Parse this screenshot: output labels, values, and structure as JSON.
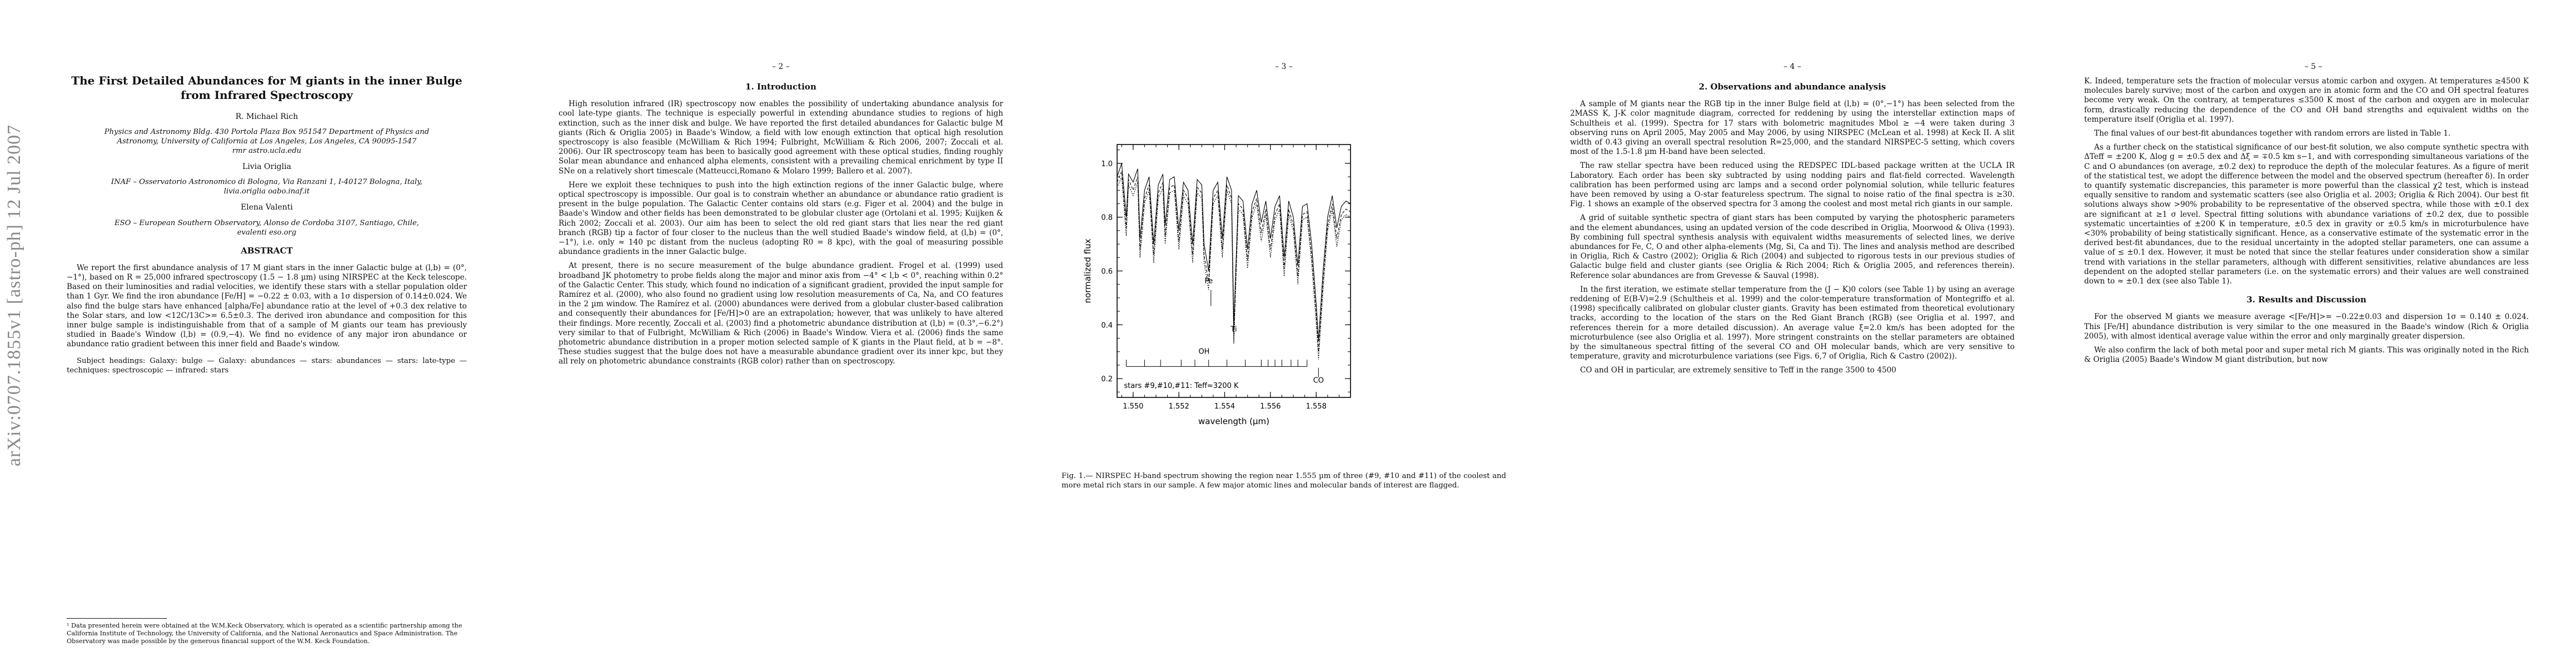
{
  "arxiv_stamp": "arXiv:0707.1855v1  [astro-ph]  12 Jul 2007",
  "page1": {
    "title_line1": "The First Detailed Abundances for M giants in the inner Bulge",
    "title_line2": "from Infrared Spectroscopy",
    "author1": "R. Michael Rich",
    "affil1_line1": "Physics and Astronomy Bldg. 430 Portola Plaza Box 951547 Department of Physics and",
    "affil1_line2": "Astronomy, University of California at Los Angeles, Los Angeles, CA 90095-1547",
    "affil1_line3": "rmr   astro.ucla.edu",
    "author2": "Livia Origlia",
    "affil2_line1": "INAF – Osservatorio Astronomico di Bologna, Via Ranzani 1, I-40127 Bologna, Italy,",
    "affil2_line2": "livia.origlia   oabo.inaf.it",
    "author3": "Elena Valenti",
    "affil3_line1": "ESO – European Southern Observatory, Alonso de Cordoba 3107, Santiago, Chile,",
    "affil3_line2": "evalenti   eso.org",
    "abstract_heading": "ABSTRACT",
    "abstract": "We report the first abundance analysis of 17 M giant stars in the inner Galactic bulge at (l,b) = (0°,−1°), based on R = 25,000 infrared spectroscopy (1.5 − 1.8 µm) using NIRSPEC at the Keck telescope. Based on their luminosities and radial velocities, we identify these stars with a stellar population older than 1 Gyr. We find the iron abundance [Fe/H] = −0.22 ± 0.03, with a 1σ dispersion of 0.14±0.024. We also find the bulge stars have enhanced [alpha/Fe] abundance ratio at the level of +0.3 dex relative to the Solar stars, and low <12C/13C>= 6.5±0.3. The derived iron abundance and composition for this inner bulge sample is indistinguishable from that of a sample of M giants our team has previously studied in Baade's Window (l,b) = (0.9,−4). We find no evidence of any major iron abundance or abundance ratio gradient between this inner field and Baade's window.",
    "subject": "Subject headings: Galaxy: bulge — Galaxy: abundances — stars: abundances — stars: late-type — techniques: spectroscopic — infrared: stars",
    "footnote": "¹ Data presented herein were obtained at the W.M.Keck Observatory, which is operated as a scientific partnership among the California Institute of Technology, the University of California, and the National Aeronautics and Space Administration. The Observatory was made possible by the generous financial support of the W.M. Keck Foundation."
  },
  "page2": {
    "number": "– 2 –",
    "heading": "1.   Introduction",
    "p1": "High resolution infrared (IR) spectroscopy now enables the possibility of undertaking abundance analysis for cool late-type giants. The technique is especially powerful in extending abundance studies to regions of high extinction, such as the inner disk and bulge. We have reported the first detailed abundances for Galactic bulge M giants (Rich & Origlia 2005) in Baade's Window, a field with low enough extinction that optical high resolution spectroscopy is also feasible (McWilliam & Rich 1994; Fulbright, McWilliam & Rich 2006, 2007; Zoccali et al. 2006). Our IR spectroscopy team has been to basically good agreement with these optical studies, finding roughly Solar mean abundance and enhanced alpha elements, consistent with a prevailing chemical enrichment by type II SNe on a relatively short timescale (Matteucci,Romano & Molaro 1999; Ballero et al. 2007).",
    "p2": "Here we exploit these techniques to push into the high extinction regions of the inner Galactic bulge, where optical spectroscopy is impossible. Our goal is to constrain whether an abundance or abundance ratio gradient is present in the bulge population. The Galactic Center contains old stars (e.g. Figer et al. 2004) and the bulge in Baade's Window and other fields has been demonstrated to be globular cluster age (Ortolani et al. 1995; Kuijken & Rich 2002; Zoccali et al. 2003). Our aim has been to select the old red giant stars that lies near the red giant branch (RGB) tip a factor of four closer to the nucleus than the well studied Baade's window field, at (l,b) = (0°,−1°), i.e. only ≈ 140 pc distant from the nucleus (adopting R0 = 8 kpc), with the goal of measuring possible abundance gradients in the inner Galactic bulge.",
    "p3": "At present, there is no secure measurement of the bulge abundance gradient. Frogel et al. (1999) used broadband JK photometry to probe fields along the major and minor axis from −4° < l,b < 0°, reaching within 0.2° of the Galactic Center. This study, which found no indication of a significant gradient, provided the input sample for Ramírez et al. (2000), who also found no gradient using low resolution measurements of Ca, Na, and CO features in the 2 µm window. The Ramírez et al. (2000) abundances were derived from a globular cluster-based calibration and consequently their abundances for [Fe/H]>0 are an extrapolation; however, that was unlikely to have altered their findings. More recently, Zoccali et al. (2003) find a photometric abundance distribution at (l,b) = (0.3°,−6.2°) very similar to that of Fulbright, McWilliam & Rich (2006) in Baade's Window. Viera et al. (2006) finds the same photometric abundance distribution in a proper motion selected sample of K giants in the Plaut field, at b = −8°. These studies suggest that the bulge does not have a measurable abundance gradient over its inner kpc, but they all rely on photometric abundance constraints (RGB color) rather than on spectroscopy."
  },
  "page3": {
    "number": "– 3 –",
    "caption": "Fig. 1.— NIRSPEC H-band spectrum showing the region near 1.555 µm of three (#9, #10 and #11) of the coolest and more metal rich stars in our sample. A few major atomic lines and molecular bands of interest are flagged."
  },
  "chart_data": {
    "type": "line",
    "xlabel": "wavelength (µm)",
    "ylabel": "normalized flux",
    "xlim": [
      1.5493,
      1.5595
    ],
    "ylim": [
      0.13,
      1.07
    ],
    "xticks": [
      1.55,
      1.552,
      1.554,
      1.556,
      1.558
    ],
    "xtick_labels": [
      "1.550",
      "1.552",
      "1.554",
      "1.556",
      "1.558"
    ],
    "yticks": [
      0.2,
      0.4,
      0.6,
      0.8,
      1.0
    ],
    "ytick_labels": [
      "0.2",
      "0.4",
      "0.6",
      "0.8",
      "1.0"
    ],
    "annotation": "stars #9,#10,#11: Teff≈3200 K",
    "line_labels": [
      {
        "text": "Fe",
        "x": 1.5533,
        "y": 0.555
      },
      {
        "text": "Ti",
        "x": 1.5544,
        "y": 0.375
      },
      {
        "text": "OH",
        "x": 1.5531,
        "y": 0.292
      },
      {
        "text": "CO",
        "x": 1.5581,
        "y": 0.185
      }
    ],
    "oh_marks": [
      1.5497,
      1.5505,
      1.5512,
      1.5521,
      1.5527,
      1.5533,
      1.5541,
      1.5549,
      1.5556,
      1.5559,
      1.5562,
      1.5565,
      1.5569,
      1.5572,
      1.5576
    ],
    "fe_mark": 1.5534,
    "ti_mark": 1.5544,
    "co_mark": 1.5581,
    "series": [
      {
        "x": [
          1.5493,
          1.5495,
          1.5497,
          1.5498,
          1.55,
          1.5502,
          1.5503,
          1.5505,
          1.5507,
          1.5509,
          1.5511,
          1.5513,
          1.5514,
          1.5516,
          1.5518,
          1.552,
          1.5522,
          1.5524,
          1.5526,
          1.5528,
          1.553,
          1.5531,
          1.5533,
          1.5535,
          1.5537,
          1.5539,
          1.5541,
          1.5543,
          1.5544,
          1.5546,
          1.5548,
          1.555,
          1.5552,
          1.5554,
          1.5556,
          1.5558,
          1.556,
          1.5562,
          1.5564,
          1.5566,
          1.5568,
          1.557,
          1.5572,
          1.5574,
          1.5576,
          1.5578,
          1.558,
          1.5581,
          1.5583,
          1.5585,
          1.5587,
          1.5589,
          1.5591,
          1.5593,
          1.5595
        ],
        "y": [
          0.95,
          1.0,
          0.8,
          0.96,
          0.93,
          0.98,
          0.72,
          0.9,
          0.95,
          0.7,
          0.92,
          0.96,
          0.77,
          0.94,
          0.95,
          0.75,
          0.93,
          0.9,
          0.7,
          0.94,
          0.92,
          0.7,
          0.6,
          0.9,
          0.93,
          0.72,
          0.95,
          0.9,
          0.4,
          0.88,
          0.86,
          0.68,
          0.85,
          0.9,
          0.78,
          0.86,
          0.72,
          0.84,
          0.88,
          0.65,
          0.86,
          0.8,
          0.62,
          0.84,
          0.85,
          0.7,
          0.48,
          0.34,
          0.6,
          0.8,
          0.88,
          0.76,
          0.84,
          0.86,
          0.85
        ]
      },
      {
        "x": [
          1.5493,
          1.5495,
          1.5497,
          1.5498,
          1.55,
          1.5502,
          1.5503,
          1.5505,
          1.5507,
          1.5509,
          1.5511,
          1.5513,
          1.5514,
          1.5516,
          1.5518,
          1.552,
          1.5522,
          1.5524,
          1.5526,
          1.5528,
          1.553,
          1.5531,
          1.5533,
          1.5535,
          1.5537,
          1.5539,
          1.5541,
          1.5543,
          1.5544,
          1.5546,
          1.5548,
          1.555,
          1.5552,
          1.5554,
          1.5556,
          1.5558,
          1.556,
          1.5562,
          1.5564,
          1.5566,
          1.5568,
          1.557,
          1.5572,
          1.5574,
          1.5576,
          1.5578,
          1.558,
          1.5581,
          1.5583,
          1.5585,
          1.5587,
          1.5589,
          1.5591,
          1.5593,
          1.5595
        ],
        "y": [
          0.93,
          0.97,
          0.76,
          0.94,
          0.9,
          0.95,
          0.68,
          0.87,
          0.92,
          0.66,
          0.89,
          0.93,
          0.73,
          0.91,
          0.92,
          0.71,
          0.9,
          0.87,
          0.66,
          0.91,
          0.89,
          0.66,
          0.56,
          0.87,
          0.9,
          0.68,
          0.92,
          0.87,
          0.36,
          0.85,
          0.83,
          0.64,
          0.82,
          0.87,
          0.74,
          0.83,
          0.68,
          0.81,
          0.85,
          0.61,
          0.83,
          0.77,
          0.58,
          0.81,
          0.82,
          0.66,
          0.44,
          0.3,
          0.56,
          0.77,
          0.85,
          0.72,
          0.81,
          0.83,
          0.82
        ]
      },
      {
        "x": [
          1.5493,
          1.5495,
          1.5497,
          1.5498,
          1.55,
          1.5502,
          1.5503,
          1.5505,
          1.5507,
          1.5509,
          1.5511,
          1.5513,
          1.5514,
          1.5516,
          1.5518,
          1.552,
          1.5522,
          1.5524,
          1.5526,
          1.5528,
          1.553,
          1.5531,
          1.5533,
          1.5535,
          1.5537,
          1.5539,
          1.5541,
          1.5543,
          1.5544,
          1.5546,
          1.5548,
          1.555,
          1.5552,
          1.5554,
          1.5556,
          1.5558,
          1.556,
          1.5562,
          1.5564,
          1.5566,
          1.5568,
          1.557,
          1.5572,
          1.5574,
          1.5576,
          1.5578,
          1.558,
          1.5581,
          1.5583,
          1.5585,
          1.5587,
          1.5589,
          1.5591,
          1.5593,
          1.5595
        ],
        "y": [
          0.91,
          0.95,
          0.73,
          0.92,
          0.88,
          0.93,
          0.65,
          0.85,
          0.9,
          0.63,
          0.87,
          0.91,
          0.7,
          0.89,
          0.9,
          0.68,
          0.88,
          0.85,
          0.63,
          0.89,
          0.87,
          0.63,
          0.53,
          0.85,
          0.88,
          0.65,
          0.9,
          0.85,
          0.33,
          0.83,
          0.81,
          0.61,
          0.8,
          0.85,
          0.71,
          0.81,
          0.65,
          0.79,
          0.83,
          0.58,
          0.81,
          0.75,
          0.55,
          0.79,
          0.8,
          0.63,
          0.41,
          0.27,
          0.53,
          0.75,
          0.83,
          0.69,
          0.79,
          0.81,
          0.8
        ]
      }
    ]
  },
  "page4": {
    "number": "– 4 –",
    "heading": "2.   Observations and abundance analysis",
    "p1": "A sample of M giants near the RGB tip in the inner Bulge field at (l,b) = (0°,−1°) has been selected from the 2MASS K, J-K color magnitude diagram, corrected for reddening by using the interstellar extinction maps of Schultheis et al. (1999). Spectra for 17 stars with bolometric magnitudes Mbol ≥ −4 were taken during 3 observing runs on April 2005, May 2005 and May 2006, by using NIRSPEC (McLean et al. 1998) at Keck II. A slit width of 0.43 giving an overall spectral resolution R=25,000, and the standard NIRSPEC-5 setting, which covers most of the 1.5-1.8 µm H-band have been selected.",
    "p2": "The raw stellar spectra have been reduced using the REDSPEC IDL-based package written at the UCLA IR Laboratory. Each order has been sky subtracted by using nodding pairs and flat-field corrected. Wavelength calibration has been performed using arc lamps and a second order polynomial solution, while telluric features have been removed by using a O-star featureless spectrum. The signal to noise ratio of the final spectra is ≥30. Fig. 1 shows an example of the observed spectra for 3 among the coolest and most metal rich giants in our sample.",
    "p3": "A grid of suitable synthetic spectra of giant stars has been computed by varying the photospheric parameters and the element abundances, using an updated version of the code described in Origlia, Moorwood & Oliva (1993). By combining full spectral synthesis analysis with equivalent widths measurements of selected lines, we derive abundances for Fe, C, O and other alpha-elements (Mg, Si, Ca and Ti). The lines and analysis method are described in Origlia, Rich & Castro (2002); Origlia & Rich (2004) and subjected to rigorous tests in our previous studies of Galactic bulge field and cluster giants (see Origlia & Rich 2004; Rich & Origlia 2005, and references therein). Reference solar abundances are from Grevesse & Sauval (1998).",
    "p4": "In the first iteration, we estimate stellar temperature from the (J − K)0 colors (see Table 1) by using an average reddening of E(B-V)=2.9 (Schultheis et al. 1999) and the color-temperature transformation of Montegriffo et al. (1998) specifically calibrated on globular cluster giants. Gravity has been estimated from theoretical evolutionary tracks, according to the location of the stars on the Red Giant Branch (RGB) (see Origlia et al. 1997, and references therein for a more detailed discussion). An average value ξ=2.0 km/s has been adopted for the microturbulence (see also Origlia et al. 1997). More stringent constraints on the stellar parameters are obtained by the simultaneous spectral fitting of the several CO and OH molecular bands, which are very sensitive to temperature, gravity and microturbulence variations (see Figs. 6,7 of Origlia, Rich & Castro (2002)).",
    "p5": "CO and OH in particular, are extremely sensitive to Teff in the range 3500 to 4500"
  },
  "page5": {
    "number": "– 5 –",
    "p1": "K. Indeed, temperature sets the fraction of molecular versus atomic carbon and oxygen. At temperatures ≥4500 K molecules barely survive; most of the carbon and oxygen are in atomic form and the CO and OH spectral features become very weak. On the contrary, at temperatures ≤3500 K most of the carbon and oxygen are in molecular form, drastically reducing the dependence of the CO and OH band strengths and equivalent widths on the temperature itself (Origlia et al. 1997).",
    "p2": "The final values of our best-fit abundances together with random errors are listed in Table 1.",
    "p3": "As a further check on the statistical significance of our best-fit solution, we also compute synthetic spectra with ΔTeff = ±200 K, Δlog g = ±0.5 dex and Δξ = ∓0.5 km s−1, and with corresponding simultaneous variations of the C and O abundances (on average, ±0.2 dex) to reproduce the depth of the molecular features. As a figure of merit of the statistical test, we adopt the difference between the model and the observed spectrum (hereafter δ). In order to quantify systematic discrepancies, this parameter is more powerful than the classical χ2 test, which is instead equally sensitive to random and systematic scatters (see also Origlia et al. 2003; Origlia & Rich 2004). Our best fit solutions always show >90% probability to be representative of the observed spectra, while those with ±0.1 dex are significant at ≥1 σ level. Spectral fitting solutions with abundance variations of ±0.2 dex, due to possible systematic uncertainties of ±200 K in temperature, ±0.5 dex in gravity or ±0.5 km/s in microturbulence have <30% probability of being statistically significant. Hence, as a conservative estimate of the systematic error in the derived best-fit abundances, due to the residual uncertainty in the adopted stellar parameters, one can assume a value of ≤ ±0.1 dex. However, it must be noted that since the stellar features under consideration show a similar trend with variations in the stellar parameters, although with different sensitivities, relative abundances are less dependent on the adopted stellar parameters (i.e. on the systematic errors) and their values are well constrained down to ≈ ±0.1 dex (see also Table 1).",
    "heading": "3.   Results and Discussion",
    "p4": "For the observed M giants we measure average <[Fe/H]>= −0.22±0.03 and dispersion 1σ = 0.140 ± 0.024. This [Fe/H] abundance distribution is very similar to the one measured in the Baade's window (Rich & Origlia 2005), with almost identical average value within the error and only marginally greater dispersion.",
    "p5": "We also confirm the lack of both metal poor and super metal rich M giants. This was originally noted in the Rich & Origlia (2005) Baade's Window M giant distribution, but now"
  }
}
